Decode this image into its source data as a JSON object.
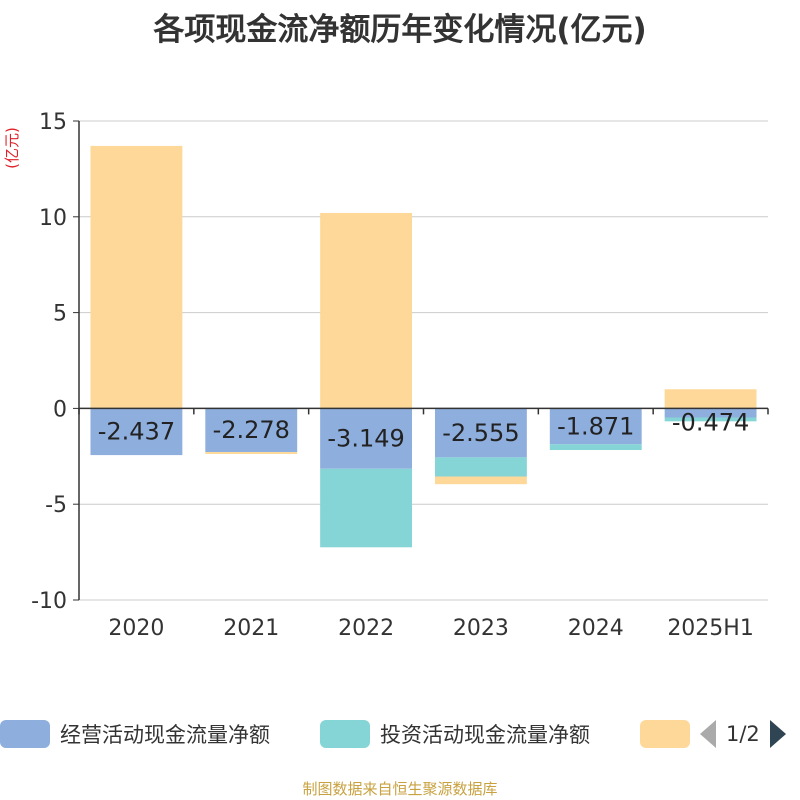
{
  "title": "各项现金流净额历年变化情况(亿元)",
  "source": "制图数据来自恒生聚源数据库",
  "colors": {
    "operating": "#8eaedd",
    "investing": "#85d4d6",
    "financing": "#fdd898",
    "axis": "#333333",
    "grid": "#cccccc",
    "unit": "#e0212a"
  },
  "legend": {
    "items": [
      {
        "label": "经营活动现金流量净额",
        "color": "#8eaedd"
      },
      {
        "label": "投资活动现金流量净额",
        "color": "#85d4d6"
      },
      {
        "label": "",
        "color": "#fdd898"
      }
    ],
    "page": "1/2",
    "prev_icon": "triangle-left-icon",
    "next_icon": "triangle-right-icon"
  },
  "chart_data": {
    "type": "bar",
    "stacked": true,
    "categories": [
      "2020",
      "2021",
      "2022",
      "2023",
      "2024",
      "2025H1"
    ],
    "ylabel": "(亿元)",
    "ylim": [
      -10,
      15
    ],
    "yticks": [
      15,
      10,
      5,
      0,
      -5,
      -10
    ],
    "grid": true,
    "legend_position": "bottom",
    "series": [
      {
        "name": "经营活动现金流量净额",
        "color": "#8eaedd",
        "values": [
          -2.437,
          -2.278,
          -3.149,
          -2.555,
          -1.871,
          -0.474
        ],
        "labels": [
          "-2.437",
          "-2.278",
          "-3.149",
          "-2.555",
          "-1.871",
          "-0.474"
        ]
      },
      {
        "name": "投资活动现金流量净额",
        "color": "#85d4d6",
        "values": [
          0,
          0,
          -4.1,
          -1.0,
          -0.3,
          -0.2
        ]
      },
      {
        "color": "#fdd898",
        "values": [
          13.7,
          -0.1,
          10.2,
          -0.4,
          0,
          1.0
        ]
      }
    ]
  }
}
